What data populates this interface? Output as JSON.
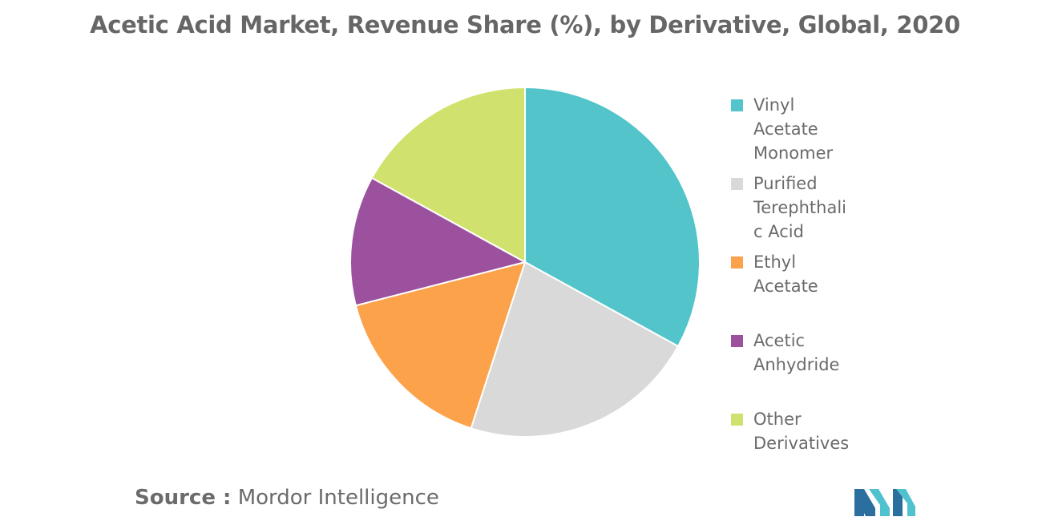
{
  "chart_data": {
    "type": "pie",
    "title": "Acetic Acid Market, Revenue Share (%), by Derivative, Global, 2020",
    "categories": [
      "Vinyl Acetate Monomer",
      "Purified Terephthalic Acid",
      "Ethyl Acetate",
      "Acetic Anhydride",
      "Other Derivatives"
    ],
    "values": [
      33,
      22,
      16,
      12,
      17
    ],
    "colors": [
      "#52c4ca",
      "#d9d9d9",
      "#fba24b",
      "#9c519e",
      "#d1e16d"
    ],
    "legend_position": "right"
  },
  "legend_labels": [
    "Vinyl\nAcetate\nMonomer",
    "Purified\nTerephthalic Acid",
    "Ethyl\nAcetate",
    "Acetic\nAnhydride",
    "Other\nDerivatives"
  ],
  "source": {
    "label": "Source :",
    "text": "Mordor Intelligence"
  },
  "logo": {
    "icon": "mordor-intelligence-logo-icon",
    "colors": [
      "#2b6f9e",
      "#4fc1cf"
    ]
  }
}
